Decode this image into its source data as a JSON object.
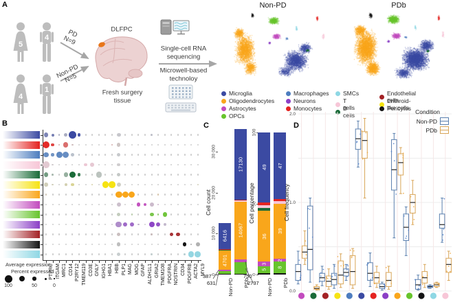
{
  "figure": {
    "panels": [
      "A",
      "B",
      "C",
      "D"
    ]
  },
  "cell_types": {
    "microglia": {
      "label": "Microglia",
      "color": "#3b4aa2"
    },
    "oligodendrocytes": {
      "label": "Oligodendrocytes",
      "color": "#f9a61b"
    },
    "astrocytes": {
      "label": "Astrocytes",
      "color": "#c24bbe"
    },
    "opcs": {
      "label": "OPCs",
      "color": "#67c42c"
    },
    "macrophages": {
      "label": "Macrophages",
      "color": "#4d7dbf"
    },
    "neurons": {
      "label": "Neurons",
      "color": "#8b3fc6"
    },
    "monocytes": {
      "label": "Monocytes",
      "color": "#e42320"
    },
    "smcs": {
      "label": "SMCs",
      "color": "#8ed7e4"
    },
    "tcells": {
      "label": "T cells",
      "color": "#f7c6d7"
    },
    "bcells": {
      "label": "B cells",
      "color": "#1a6b38"
    },
    "endothelial": {
      "label": "Endothelial cells",
      "color": "#a32125"
    },
    "erythroid": {
      "label": "Erithroid-like cells",
      "color": "#f6e313"
    },
    "pericytes": {
      "label": "Pericytes",
      "color": "#141414"
    }
  },
  "panel_a": {
    "cohorts": [
      {
        "female_count": "5",
        "male_count": "4",
        "arrow_line1": "PD",
        "arrow_line2": "N=9"
      },
      {
        "female_count": "4",
        "male_count": "1",
        "arrow_line1": "Non-PD",
        "arrow_line2": "N=5"
      }
    ],
    "brain_label": "DLFPC",
    "tissue_line1": "Fresh surgery",
    "tissue_line2": "tissue",
    "seq_line1": "Single-cell RNA",
    "seq_line2": "sequencing",
    "tech_line1": "Microwell-based",
    "tech_line2": "technoloy",
    "umap_titles": [
      "Non-PD",
      "PDb"
    ],
    "legend_columns": [
      [
        "microglia",
        "oligodendrocytes",
        "astrocytes",
        "opcs"
      ],
      [
        "macrophages",
        "neurons",
        "monocytes"
      ],
      [
        "smcs",
        "tcells",
        "bcells"
      ],
      [
        "endothelial",
        "erythroid",
        "pericytes"
      ]
    ]
  },
  "chart_data": [
    {
      "panel": "B",
      "type": "dotplot",
      "genes": [
        "PTPRC",
        "ITGAM",
        "MRC1",
        "CD14",
        "P2RY12",
        "TMEM119",
        "CD3E",
        "GNLY",
        "IGHG1",
        "HBA1",
        "HBB",
        "PLP1",
        "MAG",
        "MOG",
        "GFAP",
        "ALDH1L1",
        "GRIA2",
        "TMEM108",
        "PDGFRA",
        "NOSTRIN",
        "CD34",
        "PDGFRB",
        "ACTA2",
        "MYL9"
      ],
      "rows": [
        {
          "cell": "microglia",
          "dots": {
            "PTPRC": [
              40,
              0.55
            ],
            "ITGAM": [
              20,
              0.6
            ],
            "MRC1": [
              10,
              0.2
            ],
            "CD14": [
              28,
              0.25
            ],
            "P2RY12": [
              72,
              1
            ],
            "TMEM119": [
              26,
              0.9
            ],
            "PLP1": [
              34,
              0.05
            ],
            "GRIA2": [
              10,
              0.1
            ]
          }
        },
        {
          "cell": "monocytes",
          "dots": {
            "PTPRC": [
              62,
              0.95
            ],
            "ITGAM": [
              24,
              0.8
            ],
            "MRC1": [
              8,
              0.2
            ],
            "CD14": [
              44,
              0.55
            ],
            "P2RY12": [
              12,
              0.1
            ],
            "PLP1": [
              28,
              0.05
            ],
            "HBB": [
              10,
              0.2
            ]
          }
        },
        {
          "cell": "macrophages",
          "dots": {
            "PTPRC": [
              44,
              0.8
            ],
            "ITGAM": [
              22,
              0.7
            ],
            "MRC1": [
              54,
              0.85
            ],
            "CD14": [
              56,
              0.8
            ],
            "P2RY12": [
              26,
              0.15
            ],
            "TMEM119": [
              8,
              0.1
            ],
            "PLP1": [
              30,
              0.05
            ]
          }
        },
        {
          "cell": "tcells",
          "dots": {
            "PTPRC": [
              56,
              0.5
            ],
            "ITGAM": [
              8,
              0.1
            ],
            "CD3E": [
              26,
              0.75
            ],
            "GNLY": [
              32,
              0.6
            ],
            "CD14": [
              8,
              0.1
            ],
            "PLP1": [
              24,
              0.05
            ]
          }
        },
        {
          "cell": "bcells",
          "dots": {
            "PTPRC": [
              40,
              0.5
            ],
            "ITGAM": [
              10,
              0.2
            ],
            "CD14": [
              38,
              0.3
            ],
            "P2RY12": [
              58,
              1
            ],
            "TMEM119": [
              22,
              0.8
            ],
            "IGHG1": [
              52,
              0.1
            ],
            "PLP1": [
              28,
              0.05
            ]
          }
        },
        {
          "cell": "erythroid",
          "dots": {
            "PTPRC": [
              28,
              0.1
            ],
            "ITGAM": [
              8,
              0.1
            ],
            "CD14": [
              18,
              0.15
            ],
            "P2RY12": [
              22,
              0.3
            ],
            "GNLY": [
              8,
              0.2
            ],
            "HBA1": [
              58,
              1
            ],
            "HBB": [
              58,
              1
            ],
            "PLP1": [
              34,
              0.05
            ],
            "MYL9": [
              10,
              0.1
            ]
          }
        },
        {
          "cell": "oligodendrocytes",
          "dots": {
            "PTPRC": [
              8,
              0.1
            ],
            "PLP1": [
              62,
              1
            ],
            "MAG": [
              58,
              1
            ],
            "MOG": [
              56,
              1
            ],
            "TMEM108": [
              8,
              0.2
            ]
          }
        },
        {
          "cell": "astrocytes",
          "dots": {
            "PLP1": [
              34,
              0.1
            ],
            "GFAP": [
              28,
              0.95
            ],
            "ALDH1L1": [
              22,
              0.9
            ],
            "GRIA2": [
              34,
              0.15
            ],
            "TMEM108": [
              8,
              0.2
            ]
          }
        },
        {
          "cell": "opcs",
          "dots": {
            "PLP1": [
              30,
              0.1
            ],
            "GRIA2": [
              34,
              0.8
            ],
            "TMEM108": [
              10,
              0.5
            ],
            "PDGFRA": [
              38,
              0.9
            ],
            "MOG": [
              8,
              0.2
            ]
          }
        },
        {
          "cell": "neurons",
          "dots": {
            "PLP1": [
              54,
              0.45
            ],
            "MAG": [
              34,
              0.7
            ],
            "MOG": [
              34,
              0.7
            ],
            "GRIA2": [
              48,
              0.95
            ],
            "TMEM108": [
              34,
              0.85
            ],
            "PDGFRA": [
              22,
              0.15
            ],
            "GFAP": [
              8,
              0.2
            ]
          }
        },
        {
          "cell": "endothelial",
          "dots": {
            "PLP1": [
              28,
              0.08
            ],
            "NOSTRIN": [
              28,
              0.9
            ],
            "CD34": [
              34,
              0.9
            ],
            "GRIA2": [
              8,
              0.1
            ]
          }
        },
        {
          "cell": "pericytes",
          "dots": {
            "PLP1": [
              28,
              0.08
            ],
            "PDGFRB": [
              30,
              1
            ],
            "MYL9": [
              32,
              0.15
            ],
            "CD34": [
              8,
              0.2
            ],
            "ACTA2": [
              10,
              0.2
            ]
          }
        },
        {
          "cell": "smcs",
          "dots": {
            "PLP1": [
              28,
              0.08
            ],
            "ACTA2": [
              52,
              0.9
            ],
            "MYL9": [
              54,
              0.9
            ],
            "PDGFRB": [
              10,
              0.3
            ],
            "GRIA2": [
              8,
              0.15
            ]
          }
        }
      ],
      "legend": {
        "avg_label": "Average expression",
        "pct_label": "Percent expressed",
        "sizes": [
          "100",
          "50",
          "0"
        ]
      }
    },
    {
      "panel": "C",
      "type": "stacked-bar",
      "count": {
        "ylabel": "Cell count",
        "ticks": [
          {
            "label": "0",
            "value": 0
          },
          {
            "label": "10 000",
            "value": 10000
          },
          {
            "label": "20 000",
            "value": 20000
          },
          {
            "label": "30 000",
            "value": 30000
          }
        ],
        "ymax": 35500,
        "bars": [
          {
            "label": "Non-PD",
            "segments": [
              [
                "pericytes",
                130,
                ""
              ],
              [
                "opcs",
                631,
                ""
              ],
              [
                "astrocytes",
                387,
                ""
              ],
              [
                "oligodendrocytes",
                4701,
                "4701"
              ],
              [
                "bcells",
                120,
                ""
              ],
              [
                "tcells",
                160,
                ""
              ],
              [
                "monocytes",
                100,
                ""
              ],
              [
                "microglia",
                6416,
                "6416"
              ]
            ]
          },
          {
            "label": "PDb",
            "segments": [
              [
                "pericytes",
                200,
                ""
              ],
              [
                "opcs",
                2737,
                ""
              ],
              [
                "astrocytes",
                750,
                ""
              ],
              [
                "oligodendrocytes",
                14067,
                "14067"
              ],
              [
                "tcells",
                260,
                ""
              ],
              [
                "monocytes",
                190,
                ""
              ],
              [
                "endothelial",
                100,
                ""
              ],
              [
                "microglia",
                17130,
                "17130"
              ]
            ]
          }
        ],
        "annotations": [
          "387",
          "631",
          "750",
          "2737"
        ]
      },
      "percent": {
        "ylabel": "Cell percentage",
        "ticks": [
          {
            "label": "0",
            "value": 0
          },
          {
            "label": "50",
            "value": 50
          },
          {
            "label": "100",
            "value": 100
          }
        ],
        "ymax": 100,
        "bars": [
          {
            "label": "Non-PD",
            "segments": [
              [
                "pericytes",
                1,
                ""
              ],
              [
                "opcs",
                5,
                "5"
              ],
              [
                "astrocytes",
                3,
                "3"
              ],
              [
                "oligodendrocytes",
                36,
                "36"
              ],
              [
                "bcells",
                2,
                ""
              ],
              [
                "tcells",
                2,
                ""
              ],
              [
                "monocytes",
                2,
                ""
              ],
              [
                "microglia",
                49,
                "49"
              ]
            ]
          },
          {
            "label": "PDb",
            "segments": [
              [
                "pericytes",
                1,
                ""
              ],
              [
                "opcs",
                8,
                "8"
              ],
              [
                "astrocytes",
                2,
                "2"
              ],
              [
                "oligodendrocytes",
                39,
                "39"
              ],
              [
                "tcells",
                1.5,
                ""
              ],
              [
                "monocytes",
                1.5,
                ""
              ],
              [
                "microglia",
                47,
                "47"
              ]
            ]
          }
        ]
      }
    },
    {
      "panel": "D",
      "type": "boxplot",
      "ylabel": "Cell frequency",
      "yticks": [
        "0.0",
        "1.0",
        "2.0"
      ],
      "legend": {
        "title": "Condition",
        "items": [
          {
            "key": "non",
            "label": "Non-PD"
          },
          {
            "key": "pdb",
            "label": "PDb"
          }
        ]
      },
      "condition_colors": {
        "non": "#5a7fae",
        "pdb": "#d8a558"
      },
      "jitter_colors": {
        "non": "#4e7ec9",
        "pdb": "#eda83f"
      },
      "categories": [
        "astrocytes",
        "bcells",
        "endothelial",
        "erythroid",
        "macrophages",
        "microglia",
        "monocytes",
        "neurons",
        "oligodendrocytes",
        "opcs",
        "pericytes",
        "smcs",
        "tcells"
      ],
      "stats": {
        "astrocytes": {
          "non": [
            0.08,
            0.12,
            0.22,
            0.3,
            0.45
          ],
          "pdb": [
            0.3,
            0.37,
            0.44,
            0.51,
            0.68
          ]
        },
        "bcells": {
          "non": [
            0.1,
            0.24,
            0.47,
            0.96,
            1.05
          ],
          "pdb": [
            0.01,
            0.02,
            0.03,
            0.05,
            0.07
          ]
        },
        "endothelial": {
          "non": [
            0.06,
            0.11,
            0.15,
            0.2,
            0.28
          ],
          "pdb": [
            0.02,
            0.05,
            0.11,
            0.17,
            0.25
          ]
        },
        "erythroid": {
          "non": [
            0.03,
            0.07,
            0.13,
            0.2,
            0.3
          ],
          "pdb": [
            0.04,
            0.08,
            0.18,
            0.34,
            0.42
          ]
        },
        "macrophages": {
          "non": [
            0.12,
            0.17,
            0.21,
            0.25,
            0.3
          ],
          "pdb": [
            0.03,
            0.07,
            0.22,
            0.4,
            0.48
          ]
        },
        "microglia": {
          "non": [
            1.4,
            1.6,
            1.72,
            1.83,
            1.92
          ],
          "pdb": [
            1.05,
            1.5,
            1.7,
            1.8,
            1.95
          ]
        },
        "monocytes": {
          "non": [
            0.05,
            0.12,
            0.2,
            0.32,
            0.43
          ],
          "pdb": [
            0.04,
            0.09,
            0.15,
            0.21,
            0.28
          ]
        },
        "neurons": {
          "non": [
            0.01,
            0.03,
            0.05,
            0.08,
            0.1
          ],
          "pdb": [
            0.02,
            0.05,
            0.12,
            0.21,
            0.28
          ]
        },
        "oligodendrocytes": {
          "non": [
            0.6,
            1.14,
            1.37,
            1.71,
            1.78
          ],
          "pdb": [
            1.1,
            1.31,
            1.45,
            1.55,
            1.62
          ]
        },
        "opcs": {
          "non": [
            0.4,
            0.57,
            0.72,
            0.87,
            0.95
          ],
          "pdb": [
            0.75,
            0.88,
            1.0,
            1.09,
            1.25
          ]
        },
        "pericytes": {
          "non": [
            0.01,
            0.02,
            0.07,
            0.13,
            0.18
          ],
          "pdb": [
            0.04,
            0.09,
            0.15,
            0.22,
            0.3
          ]
        },
        "smcs": {
          "non": [
            0.03,
            0.04,
            0.05,
            0.06,
            0.07
          ],
          "pdb": [
            0.04,
            0.05,
            0.07,
            0.09,
            0.1
          ]
        },
        "tcells": {
          "non": [
            0.55,
            0.71,
            0.75,
            0.87,
            1.05
          ],
          "pdb": [
            0.12,
            0.21,
            0.3,
            0.37,
            0.45
          ]
        }
      }
    }
  ]
}
